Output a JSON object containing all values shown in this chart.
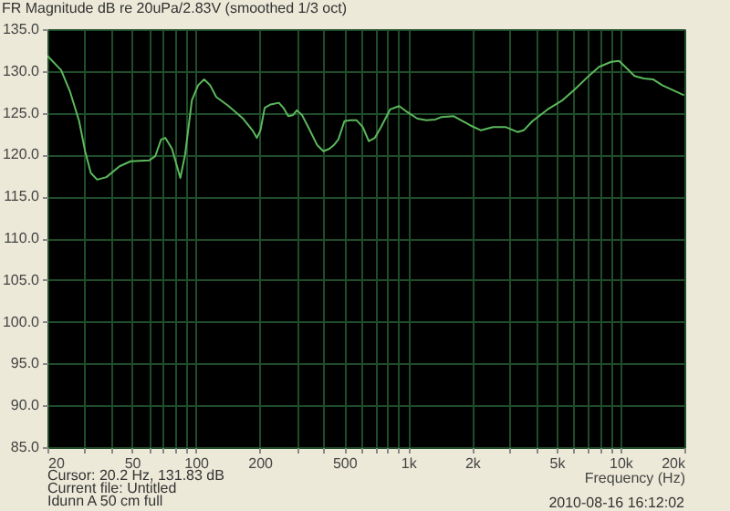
{
  "chart_data": {
    "type": "line",
    "title": "FR Magnitude dB re 20uPa/2.83V (smoothed 1/3 oct)",
    "xlabel": "Frequency (Hz)",
    "annotations": [
      "Cursor: 20.2 Hz, 131.83 dB",
      "Current file: Untitled",
      "Idunn A 50 cm full",
      "2010-08-16  16:12:02"
    ],
    "log": "x",
    "grid": true,
    "marker": "none",
    "line_style": "solid",
    "xlim": [
      20,
      20000
    ],
    "ylim": [
      85,
      135
    ],
    "xticks": [
      20,
      {
        "value": 30,
        "label": null
      },
      {
        "value": 40,
        "label": null
      },
      50,
      {
        "value": 60,
        "label": null
      },
      {
        "value": 70,
        "label": null
      },
      {
        "value": 80,
        "label": null
      },
      {
        "value": 90,
        "label": null
      },
      100,
      200,
      {
        "value": 300,
        "label": null
      },
      {
        "value": 400,
        "label": null
      },
      500,
      {
        "value": 600,
        "label": null
      },
      {
        "value": 700,
        "label": null
      },
      {
        "value": 800,
        "label": null
      },
      {
        "value": 900,
        "label": null
      },
      {
        "value": 1000,
        "label": "1k"
      },
      {
        "value": 2000,
        "label": "2k"
      },
      {
        "value": 3000,
        "label": null
      },
      {
        "value": 4000,
        "label": null
      },
      {
        "value": 5000,
        "label": "5k"
      },
      {
        "value": 6000,
        "label": null
      },
      {
        "value": 7000,
        "label": null
      },
      {
        "value": 8000,
        "label": null
      },
      {
        "value": 9000,
        "label": null
      },
      {
        "value": 10000,
        "label": "10k"
      },
      {
        "value": 20000,
        "label": "20k"
      }
    ],
    "yticks": [
      {
        "value": 85,
        "label": "85.0"
      },
      {
        "value": 90,
        "label": "90.0"
      },
      {
        "value": 95,
        "label": "95.0"
      },
      {
        "value": 100,
        "label": "100.0"
      },
      {
        "value": 105,
        "label": "105.0"
      },
      {
        "value": 110,
        "label": "110.0"
      },
      {
        "value": 115,
        "label": "115.0"
      },
      {
        "value": 120,
        "label": "120.0"
      },
      {
        "value": 125,
        "label": "125.0"
      },
      {
        "value": 130,
        "label": "130.0"
      },
      {
        "value": 135,
        "label": "135.0"
      }
    ],
    "series": [
      {
        "color": "#5cb85c",
        "x": [
          20,
          23.2,
          25.5,
          28.2,
          30.1,
          32,
          34.3,
          37.9,
          43.7,
          49.3,
          60.2,
          64.4,
          68.6,
          71.8,
          77.2,
          84.5,
          89,
          95.8,
          102.5,
          109.4,
          116.7,
          124.8,
          142.7,
          167,
          184.8,
          193.8,
          201.5,
          211,
          225.4,
          246,
          258.3,
          272.5,
          285.8,
          299.2,
          316.8,
          338.3,
          373.6,
          399,
          426,
          449,
          469,
          501,
          536,
          572,
          611,
          653,
          697,
          745,
          822,
          907,
          989,
          1105,
          1219,
          1346,
          1437,
          1640,
          1810,
          1997,
          2204,
          2515,
          2870,
          3275,
          3500,
          3850,
          4535,
          5335,
          6090,
          6950,
          7930,
          9050,
          9850,
          10530,
          11640,
          12870,
          14230,
          15720,
          19930
        ],
        "values": [
          131.8,
          130.1,
          127.6,
          124.0,
          120.4,
          117.8,
          117.0,
          117.3,
          118.6,
          119.2,
          119.3,
          119.8,
          121.8,
          122.0,
          120.7,
          117.2,
          120.0,
          126.5,
          128.3,
          129.0,
          128.3,
          126.9,
          125.8,
          124.3,
          122.9,
          122.0,
          122.9,
          125.6,
          126.0,
          126.2,
          125.6,
          124.6,
          124.7,
          125.3,
          124.7,
          123.3,
          121.1,
          120.4,
          120.7,
          121.2,
          121.8,
          124.0,
          124.1,
          124.1,
          123.3,
          121.6,
          122.0,
          123.3,
          125.4,
          125.8,
          125.1,
          124.3,
          124.1,
          124.2,
          124.5,
          124.6,
          124.0,
          123.4,
          122.9,
          123.3,
          123.3,
          122.7,
          122.9,
          124.0,
          125.4,
          126.5,
          127.8,
          129.2,
          130.5,
          131.1,
          131.2,
          130.5,
          129.4,
          129.1,
          129.0,
          128.3,
          127.1
        ]
      }
    ]
  }
}
